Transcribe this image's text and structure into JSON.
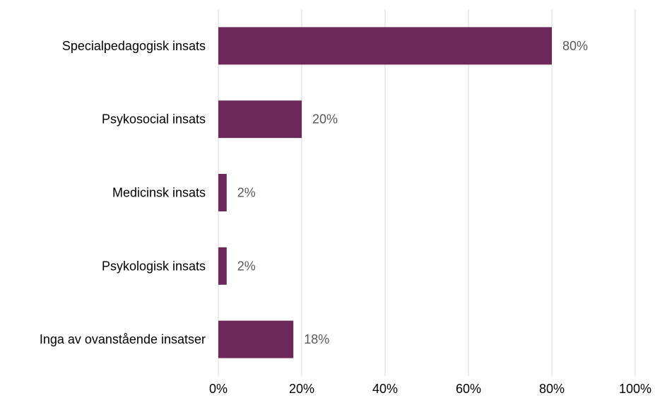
{
  "chart_data": {
    "type": "bar",
    "orientation": "horizontal",
    "categories": [
      "Specialpedagogisk insats",
      "Psykosocial insats",
      "Medicinsk insats",
      "Psykologisk insats",
      "Inga av ovanstående insatser"
    ],
    "values": [
      80,
      20,
      2,
      2,
      18
    ],
    "data_labels": [
      "80%",
      "20%",
      "2%",
      "2%",
      "18%"
    ],
    "title": "",
    "xlabel": "",
    "ylabel": "",
    "xlim": [
      0,
      100
    ],
    "x_ticks": [
      0,
      20,
      40,
      60,
      80,
      100
    ],
    "x_tick_labels": [
      "0%",
      "20%",
      "40%",
      "60%",
      "80%",
      "100%"
    ],
    "grid": "vertical",
    "legend": "none",
    "bar_color": "#6b2858",
    "label_color": "#595959",
    "grid_color": "#d9d9d9"
  }
}
